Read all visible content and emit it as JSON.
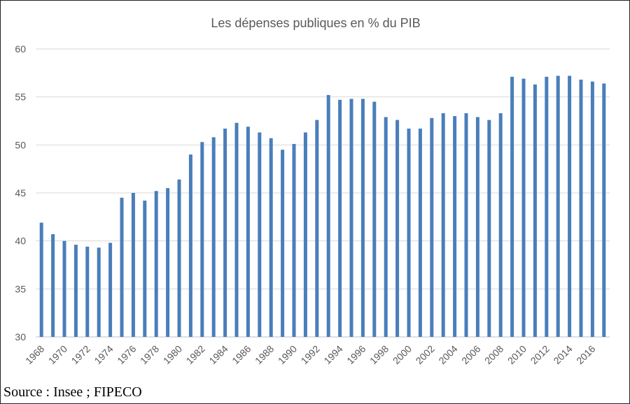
{
  "chart_data": {
    "type": "bar",
    "title": "Les dépenses publiques  en % du PIB",
    "xlabel": "",
    "ylabel": "",
    "ylim": [
      30,
      60
    ],
    "y_ticks": [
      30,
      35,
      40,
      45,
      50,
      55,
      60
    ],
    "grid": true,
    "legend": "none",
    "bar_color": "#4a7ebb",
    "categories": [
      "1968",
      "1969",
      "1970",
      "1971",
      "1972",
      "1973",
      "1974",
      "1975",
      "1976",
      "1977",
      "1978",
      "1979",
      "1980",
      "1981",
      "1982",
      "1983",
      "1984",
      "1985",
      "1986",
      "1987",
      "1988",
      "1989",
      "1990",
      "1991",
      "1992",
      "1993",
      "1994",
      "1995",
      "1996",
      "1997",
      "1998",
      "1999",
      "2000",
      "2001",
      "2002",
      "2003",
      "2004",
      "2005",
      "2006",
      "2007",
      "2008",
      "2009",
      "2010",
      "2011",
      "2012",
      "2013",
      "2014",
      "2015",
      "2016",
      "2017"
    ],
    "x_tick_labels": [
      "1968",
      "1970",
      "1972",
      "1974",
      "1976",
      "1978",
      "1980",
      "1982",
      "1984",
      "1986",
      "1988",
      "1990",
      "1992",
      "1994",
      "1996",
      "1998",
      "2000",
      "2002",
      "2004",
      "2006",
      "2008",
      "2010",
      "2012",
      "2014",
      "2016"
    ],
    "values": [
      41.9,
      40.7,
      40.0,
      39.6,
      39.4,
      39.3,
      39.8,
      44.5,
      45.0,
      44.2,
      45.2,
      45.5,
      46.4,
      49.0,
      50.3,
      50.8,
      51.7,
      52.3,
      51.9,
      51.3,
      50.7,
      49.5,
      50.1,
      51.3,
      52.6,
      55.2,
      54.7,
      54.8,
      54.8,
      54.5,
      52.9,
      52.6,
      51.7,
      51.7,
      52.8,
      53.3,
      53.0,
      53.3,
      52.9,
      52.6,
      53.3,
      57.1,
      56.9,
      56.3,
      57.1,
      57.2,
      57.2,
      56.8,
      56.6,
      56.4
    ]
  },
  "footer": {
    "source": "Source : Insee ; FIPECO"
  }
}
